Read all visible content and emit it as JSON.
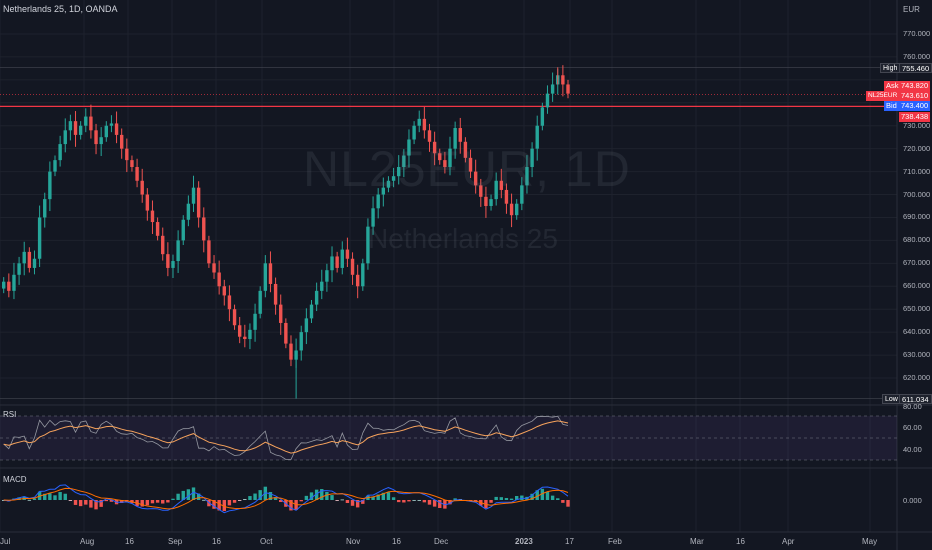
{
  "header": {
    "title": "Netherlands 25, 1D, OANDA"
  },
  "watermark": {
    "symbol": "NL25EUR, 1D",
    "name": "Netherlands 25"
  },
  "price_axis": {
    "unit": "EUR",
    "ticks": [
      "770.000",
      "760.000",
      "730.000",
      "720.000",
      "710.000",
      "700.000",
      "690.000",
      "680.000",
      "670.000",
      "660.000",
      "650.000",
      "640.000",
      "630.000",
      "620.000"
    ]
  },
  "tags": {
    "high_label": "High",
    "high_value": "755.460",
    "ask_label": "Ask",
    "ask_value": "743.820",
    "symbol_label": "NL25EUR",
    "symbol_value": "743.610",
    "bid_label": "Bid",
    "bid_value": "743.400",
    "level_value": "738.438",
    "low_label": "Low",
    "low_value": "611.034"
  },
  "rsi": {
    "label": "RSI",
    "ticks": [
      "80.00",
      "60.00",
      "40.00"
    ]
  },
  "macd": {
    "label": "MACD",
    "ticks": [
      "0.000"
    ]
  },
  "time_axis": {
    "ticks": [
      "Jul",
      "Aug",
      "16",
      "Sep",
      "16",
      "Oct",
      "Nov",
      "16",
      "Dec",
      "2023",
      "17",
      "Feb",
      "Mar",
      "16",
      "Apr",
      "May"
    ]
  },
  "colors": {
    "up": "#26a69a",
    "down": "#ef5350",
    "background": "#131722",
    "resistance": "#f23645",
    "rsi_line": "#9598a1",
    "rsi_ma": "#f7a35c",
    "macd_line": "#2962ff",
    "signal_line": "#ff6d00"
  },
  "chart_data": {
    "type": "candlestick",
    "symbol": "NL25EUR",
    "interval": "1D",
    "close_series": [
      662,
      658,
      665,
      670,
      675,
      668,
      672,
      690,
      698,
      710,
      715,
      722,
      728,
      732,
      726,
      730,
      734,
      728,
      722,
      725,
      730,
      731,
      726,
      720,
      715,
      712,
      706,
      700,
      693,
      688,
      682,
      674,
      668,
      671,
      680,
      689,
      696,
      703,
      690,
      680,
      670,
      666,
      660,
      656,
      650,
      643,
      638,
      637,
      641,
      648,
      658,
      670,
      661,
      652,
      644,
      635,
      628,
      632,
      640,
      646,
      652,
      658,
      662,
      667,
      673,
      668,
      676,
      672,
      665,
      660,
      670,
      686,
      694,
      700,
      703,
      706,
      708,
      712,
      717,
      724,
      730,
      733,
      728,
      723,
      718,
      715,
      712,
      720,
      729,
      723,
      716,
      710,
      704,
      699,
      695,
      698,
      706,
      702,
      696,
      691,
      696,
      704,
      712,
      720,
      730,
      738,
      744,
      748,
      752,
      748,
      744
    ],
    "high": 755.46,
    "low": 611.034,
    "resistance_level": 738.438,
    "ylim": [
      611,
      775
    ]
  }
}
